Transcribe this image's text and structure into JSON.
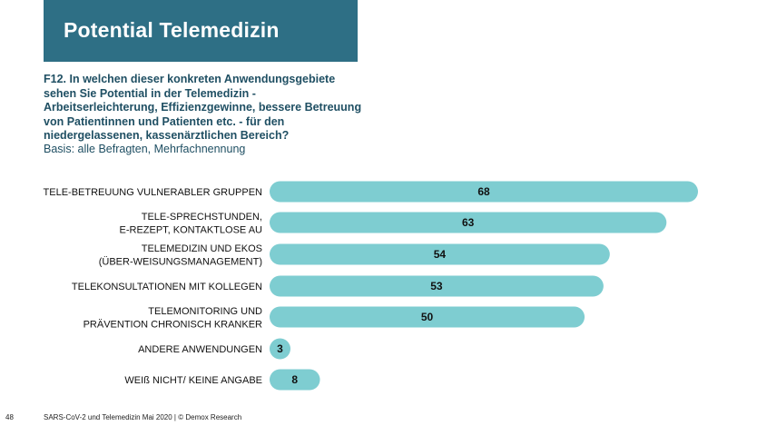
{
  "header": {
    "title": "Potential Telemedizin"
  },
  "question": {
    "text": "F12. In welchen dieser konkreten Anwendungsgebiete sehen Sie Potential in der Telemedizin - Arbeitserleichterung, Effizienzgewinne, bessere Betreuung von Patientinnen und Patienten etc. - für den niedergelassenen, kassenärztlichen Bereich?",
    "basis": "Basis: alle Befragten, Mehrfachnennung"
  },
  "chart_data": {
    "type": "bar",
    "orientation": "horizontal",
    "categories": [
      [
        "TELE-BETREUUNG VULNERABLER GRUPPEN"
      ],
      [
        "TELE-SPRECHSTUNDEN,",
        "E-REZEPT, KONTAKTLOSE AU"
      ],
      [
        "TELEMEDIZIN UND EKOS",
        "(ÜBER-WEISUNGSMANAGEMENT)"
      ],
      [
        "TELEKONSULTATIONEN MIT KOLLEGEN"
      ],
      [
        "TELEMONITORING UND",
        "PRÄVENTION CHRONISCH KRANKER"
      ],
      [
        "ANDERE ANWENDUNGEN"
      ],
      [
        "WEIß NICHT/ KEINE ANGABE"
      ]
    ],
    "values": [
      68,
      63,
      54,
      53,
      50,
      3,
      8
    ],
    "bar_color": "#7ecdd1",
    "value_label_color": "#111111",
    "xlim": [
      0,
      68
    ],
    "grid": false,
    "legend": "none"
  },
  "footer": {
    "page_number": "48",
    "text": "SARS-CoV-2 und Telemedizin Mai 2020 | © Demox Research"
  }
}
